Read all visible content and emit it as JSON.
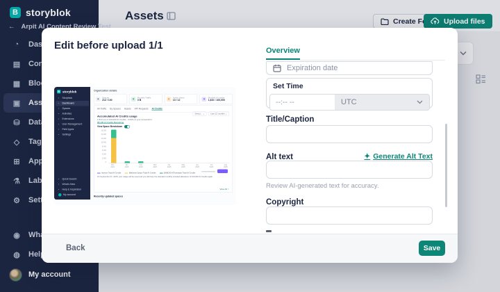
{
  "app": {
    "brand": "storyblok"
  },
  "colors": {
    "accent_teal": "#0d8577",
    "sidebar_navy": "#1c2642",
    "bar_yellow": "#f6c244",
    "bar_green": "#35c08e",
    "purple": "#7c5cfc"
  },
  "sidebar": {
    "space_name": "Arpit AI Content Review Test",
    "items": [
      {
        "label": "Dashboard",
        "icon": "dashboard",
        "active": false
      },
      {
        "label": "Content",
        "icon": "content",
        "active": false
      },
      {
        "label": "Block Library",
        "icon": "block-library",
        "active": false
      },
      {
        "label": "Assets",
        "icon": "assets",
        "active": true
      },
      {
        "label": "Datasources",
        "icon": "datasources",
        "active": false
      },
      {
        "label": "Tags",
        "icon": "tags",
        "active": false
      },
      {
        "label": "Apps",
        "icon": "apps",
        "active": false
      },
      {
        "label": "Labs",
        "icon": "labs",
        "active": false
      },
      {
        "label": "Settings",
        "icon": "settings",
        "active": false
      }
    ],
    "bottom_items": [
      {
        "label": "What's New",
        "icon": "whats-new"
      },
      {
        "label": "Help & Inspiration",
        "icon": "help"
      }
    ],
    "account_label": "My account"
  },
  "header": {
    "title": "Assets",
    "create_folder_label": "Create Folder",
    "upload_files_label": "Upload files"
  },
  "modal": {
    "title": "Edit before upload 1/1",
    "tab_label": "Overview",
    "fields": {
      "expiration_placeholder": "Expiration date",
      "set_time_label": "Set Time",
      "time_placeholder": "--:-- --",
      "timezone_value": "UTC",
      "title_caption_label": "Title/Caption",
      "alt_text_label": "Alt text",
      "generate_alt_text_label": "Generate Alt Text",
      "alt_helper": "Review AI-generated text for accuracy.",
      "copyright_label": "Copyright"
    },
    "footer": {
      "back_label": "Back",
      "save_label": "Save"
    }
  },
  "thumbnail": {
    "brand": "storyblok",
    "sidebar_items": [
      {
        "label": "Storyblok",
        "active": false
      },
      {
        "label": "Dashboard",
        "active": true
      },
      {
        "label": "Spaces",
        "active": false
      },
      {
        "label": "Activities",
        "active": false
      },
      {
        "label": "Extensions",
        "active": false
      },
      {
        "label": "User Management",
        "active": false
      },
      {
        "label": "Field types",
        "active": false
      },
      {
        "label": "Settings",
        "active": false
      }
    ],
    "sidebar_bottom_items": [
      "Quick Search",
      "What's New",
      "Help & Inspiration"
    ],
    "account_label": "My account",
    "org_label": "Organization details",
    "cards": [
      {
        "label": "Spaces",
        "value": "212 / 100",
        "bg": "#eef0f3",
        "fg": "#6b7280"
      },
      {
        "label": "Monthly Traffic",
        "value": "0 B",
        "bg": "#d9f2e5",
        "fg": "#2fa378"
      },
      {
        "label": "Active Users",
        "value": "10 / 12",
        "bg": "#fde8d2",
        "fg": "#e8963f"
      },
      {
        "label": "Monthly AI credits",
        "value": "1,810 / 100,000",
        "bg": "#e6defc",
        "fg": "#7c5cfc"
      }
    ],
    "tabs": [
      {
        "label": "All Traffic",
        "active": false
      },
      {
        "label": "By Spaces",
        "active": false
      },
      {
        "label": "Assets",
        "active": false
      },
      {
        "label": "API Requests",
        "active": false
      },
      {
        "label": "AI Credits",
        "active": true
      }
    ],
    "pickers": [
      "Select...",
      "Last 12 months"
    ],
    "chart": {
      "title": "Accumulated AI Credits usage",
      "subtitle": "1,810 out of 100,000 AI Credits · 0.06% of your annual limit",
      "remaining_link": "98,190 AI Credits Remaining",
      "toggle_label": "View Space Breakdown",
      "y_labels": [
        "16,000",
        "14,000",
        "12,000",
        "10,000",
        "8,000",
        "6,000",
        "4,000",
        "2,000",
        "0"
      ],
      "y_max": 16000,
      "months": [
        "Dec 2024",
        "Jan 2025",
        "Feb 2025",
        "Mar 2025",
        "Apr 2025",
        "May 2025",
        "Jun 2025",
        "Jul 2025",
        "Aug 2025"
      ],
      "bars": [
        {
          "yellow": 12000,
          "green": 4000
        },
        {
          "yellow": 0,
          "green": 800
        },
        {
          "yellow": 0,
          "green": 800
        },
        {
          "yellow": 0,
          "green": 0
        },
        {
          "yellow": 0,
          "green": 0
        },
        {
          "yellow": 0,
          "green": 0
        },
        {
          "yellow": 0,
          "green": 0
        },
        {
          "yellow": 0,
          "green": 0
        },
        {
          "yellow": 0,
          "green": 0
        }
      ],
      "legend": [
        {
          "label": "Intense Total AI Credits",
          "color": "#7c5cfc"
        },
        {
          "label": "Mathews Space Total AI Credits",
          "color": "#f6c244"
        },
        {
          "label": "BHBOID AITranslator Total AI Credits",
          "color": "#2fa378"
        }
      ],
      "note": "On September 01, 2025, your usage will be reset and you will have the standard monthly included allowance of 100,000 AI Credits again."
    },
    "view_all_label": "View All >",
    "recently_updated_label": "Recently updated spaces"
  }
}
